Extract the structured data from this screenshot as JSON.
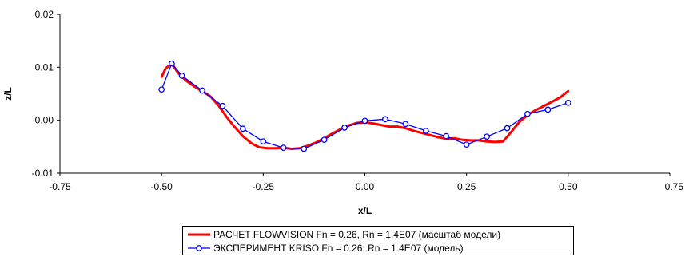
{
  "chart_data": {
    "type": "line",
    "xlabel": "x/L",
    "ylabel": "z/L",
    "xlim": [
      -0.75,
      0.75
    ],
    "ylim": [
      -0.01,
      0.02
    ],
    "x_ticks": [
      "-0.75",
      "-0.50",
      "-0.25",
      "0.00",
      "0.25",
      "0.50",
      "0.75"
    ],
    "y_ticks": [
      "-0.01",
      "0.00",
      "0.01",
      "0.02"
    ],
    "grid": false,
    "legend_position": "bottom",
    "series": [
      {
        "name": "РАСЧЕТ FLOWVISION Fn = 0.26, Rn = 1.4E07 (масштаб модели)",
        "color": "#ff0000",
        "marker": "none",
        "x": [
          -0.5,
          -0.49,
          -0.475,
          -0.46,
          -0.44,
          -0.42,
          -0.4,
          -0.38,
          -0.36,
          -0.34,
          -0.32,
          -0.3,
          -0.28,
          -0.26,
          -0.24,
          -0.22,
          -0.2,
          -0.18,
          -0.16,
          -0.14,
          -0.12,
          -0.1,
          -0.08,
          -0.06,
          -0.04,
          -0.02,
          0.0,
          0.02,
          0.04,
          0.06,
          0.08,
          0.1,
          0.12,
          0.14,
          0.16,
          0.18,
          0.2,
          0.22,
          0.24,
          0.26,
          0.28,
          0.3,
          0.32,
          0.34,
          0.36,
          0.38,
          0.4,
          0.42,
          0.44,
          0.46,
          0.48,
          0.5
        ],
        "y": [
          0.0082,
          0.0098,
          0.0107,
          0.009,
          0.0075,
          0.0064,
          0.0055,
          0.0045,
          0.0028,
          0.0006,
          -0.0013,
          -0.003,
          -0.0043,
          -0.0051,
          -0.0053,
          -0.0053,
          -0.0052,
          -0.0054,
          -0.0053,
          -0.0048,
          -0.0042,
          -0.0034,
          -0.0025,
          -0.0017,
          -0.001,
          -0.0005,
          -0.0004,
          -0.0006,
          -0.0009,
          -0.0012,
          -0.0012,
          -0.0015,
          -0.002,
          -0.0024,
          -0.0028,
          -0.0032,
          -0.0035,
          -0.0034,
          -0.0037,
          -0.0038,
          -0.0038,
          -0.004,
          -0.0041,
          -0.004,
          -0.0022,
          -0.0003,
          0.001,
          0.0019,
          0.0027,
          0.0035,
          0.0043,
          0.0055
        ]
      },
      {
        "name": "ЭКСПЕРИМЕНТ KRISO Fn = 0.26, Rn = 1.4E07 (модель)",
        "color": "#0000ff",
        "marker": "circle",
        "x": [
          -0.5,
          -0.475,
          -0.45,
          -0.4,
          -0.35,
          -0.3,
          -0.25,
          -0.2,
          -0.15,
          -0.1,
          -0.05,
          0.0,
          0.05,
          0.1,
          0.15,
          0.2,
          0.25,
          0.3,
          0.35,
          0.4,
          0.45,
          0.5
        ],
        "y": [
          0.0058,
          0.0107,
          0.0084,
          0.0056,
          0.0027,
          -0.0016,
          -0.004,
          -0.0052,
          -0.0054,
          -0.0037,
          -0.0014,
          -0.0001,
          0.0002,
          -0.0007,
          -0.002,
          -0.003,
          -0.0046,
          -0.0031,
          -0.0015,
          0.0012,
          0.002,
          0.0033
        ]
      }
    ]
  }
}
